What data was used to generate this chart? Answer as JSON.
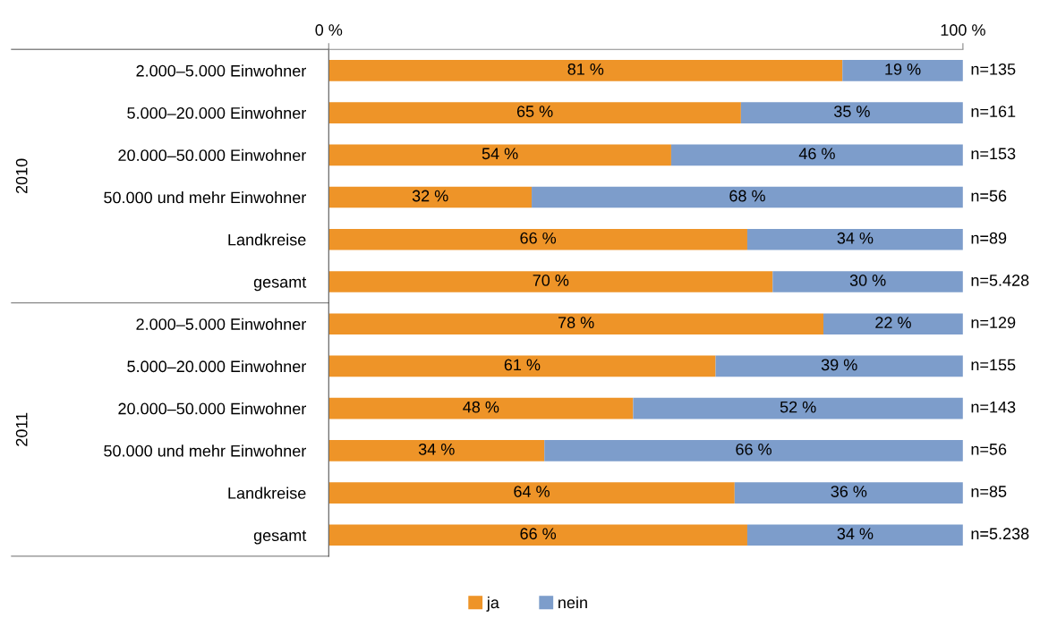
{
  "chart_data": {
    "type": "bar",
    "orientation": "horizontal",
    "stacked": true,
    "categories": [
      "2.000–5.000 Einwohner",
      "5.000–20.000 Einwohner",
      "20.000–50.000 Einwohner",
      "50.000 und mehr Einwohner",
      "Landkreise",
      "gesamt",
      "2.000–5.000 Einwohner",
      "5.000–20.000 Einwohner",
      "20.000–50.000 Einwohner",
      "50.000 und mehr Einwohner",
      "Landkreise",
      "gesamt"
    ],
    "series": [
      {
        "name": "ja",
        "color": "#ee9428",
        "values": [
          81,
          65,
          54,
          32,
          66,
          70,
          78,
          61,
          48,
          34,
          64,
          66
        ],
        "value_labels": [
          "81 %",
          "65 %",
          "54 %",
          "32 %",
          "66 %",
          "70 %",
          "78 %",
          "61 %",
          "48 %",
          "34 %",
          "64 %",
          "66 %"
        ]
      },
      {
        "name": "nein",
        "color": "#7d9dcb",
        "values": [
          19,
          35,
          46,
          68,
          34,
          30,
          22,
          39,
          52,
          66,
          36,
          34
        ],
        "value_labels": [
          "19 %",
          "35 %",
          "46 %",
          "68 %",
          "34 %",
          "30 %",
          "22 %",
          "39 %",
          "52 %",
          "66 %",
          "36 %",
          "34 %"
        ]
      }
    ],
    "annotations": [
      "n=135",
      "n=161",
      "n=153",
      "n=56",
      "n=89",
      "n=5.428",
      "n=129",
      "n=155",
      "n=143",
      "n=56",
      "n=85",
      "n=5.238",
      "2010",
      "2011"
    ],
    "xlim": [
      0,
      100
    ],
    "xticks": [
      {
        "value": 0,
        "label": "0 %"
      },
      {
        "value": 100,
        "label": "100 %"
      }
    ],
    "grid": false,
    "legend": "bottom"
  }
}
